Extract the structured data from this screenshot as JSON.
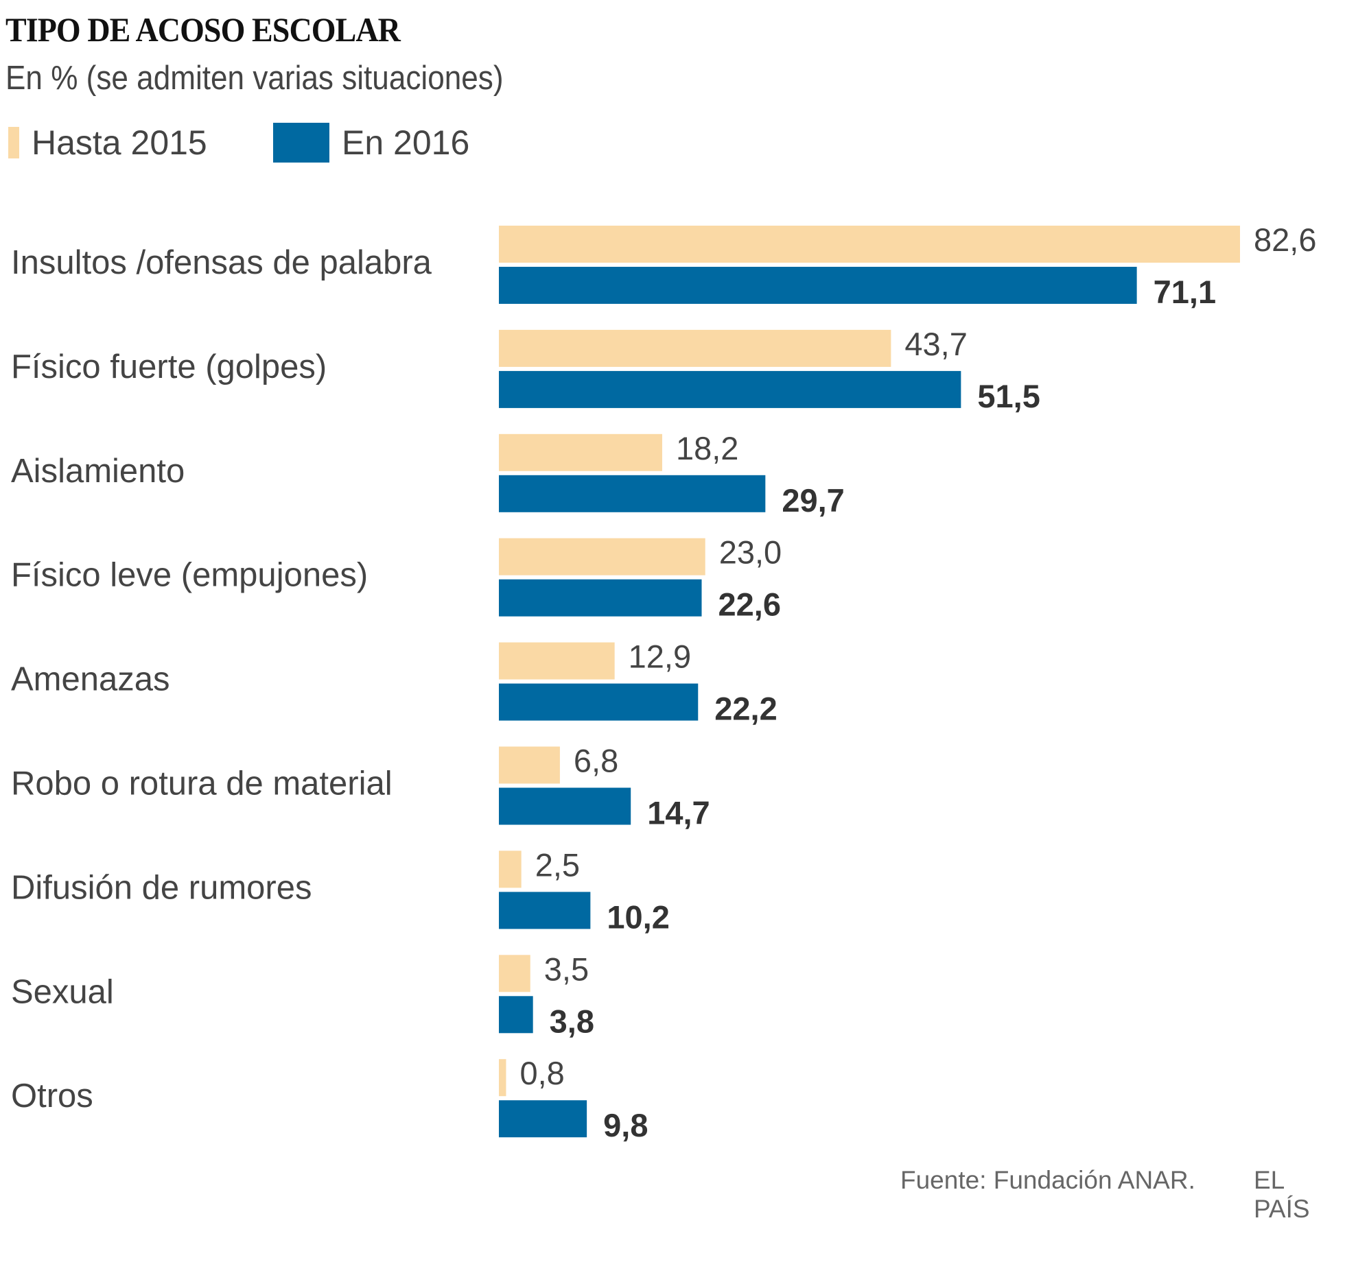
{
  "chart_data": {
    "type": "bar",
    "orientation": "horizontal",
    "title": "TIPO DE ACOSO ESCOLAR",
    "subtitle": "En % (se admiten varias situaciones)",
    "categories": [
      "Insultos /ofensas de palabra",
      "Físico fuerte (golpes)",
      "Aislamiento",
      "Físico leve (empujones)",
      "Amenazas",
      "Robo o rotura de material",
      "Difusión de rumores",
      "Sexual",
      "Otros"
    ],
    "series": [
      {
        "name": "Hasta 2015",
        "color": "#fad9a5",
        "values": [
          82.6,
          43.7,
          18.2,
          23.0,
          12.9,
          6.8,
          2.5,
          3.5,
          0.8
        ],
        "labels": [
          "82,6",
          "43,7",
          "18,2",
          "23,0",
          "12,9",
          "6,8",
          "2,5",
          "3,5",
          "0,8"
        ]
      },
      {
        "name": "En 2016",
        "color": "#0069a1",
        "values": [
          71.1,
          51.5,
          29.7,
          22.6,
          22.2,
          14.7,
          10.2,
          3.8,
          9.8
        ],
        "labels": [
          "71,1",
          "51,5",
          "29,7",
          "22,6",
          "22,2",
          "14,7",
          "10,2",
          "3,8",
          "9,8"
        ]
      }
    ],
    "xlim": [
      0,
      82.6
    ],
    "grid": false,
    "legend_placement": "top-left",
    "source": "Fuente: Fundación ANAR.",
    "brand": "EL PAÍS"
  }
}
